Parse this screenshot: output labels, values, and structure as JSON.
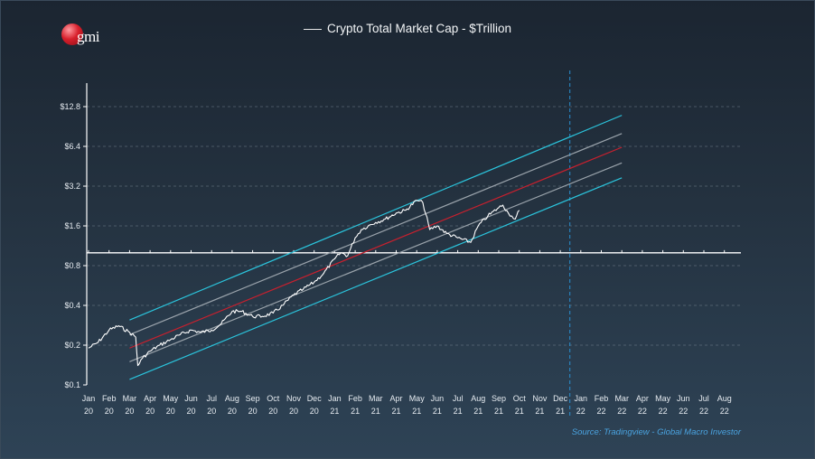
{
  "header": {
    "logo_text": "gmi",
    "title": "Crypto Total Market Cap - $Trillion",
    "source": "Source: Tradingview - Global Macro Investor"
  },
  "colors": {
    "price_line": "#ffffff",
    "outer_channel": "#2bc4dc",
    "inner_channel": "#9aa3ab",
    "regression": "#c8202e",
    "reference_line": "#ffffff",
    "vertical_marker": "#2a8fd0",
    "gridline": "#7d8b98"
  },
  "chart_data": {
    "type": "line",
    "title": "Crypto Total Market Cap - $Trillion",
    "y_scale": "log2",
    "ylim": [
      0.1,
      12.8
    ],
    "y_ticks": [
      {
        "value": 0.1,
        "label": "$0.1"
      },
      {
        "value": 0.2,
        "label": "$0.2"
      },
      {
        "value": 0.4,
        "label": "$0.4"
      },
      {
        "value": 0.8,
        "label": "$0.8"
      },
      {
        "value": 1.6,
        "label": "$1.6"
      },
      {
        "value": 3.2,
        "label": "$3.2"
      },
      {
        "value": 6.4,
        "label": "$6.4"
      },
      {
        "value": 12.8,
        "label": "$12.8"
      }
    ],
    "x_ticks": [
      {
        "month": "Jan",
        "year": "20"
      },
      {
        "month": "Feb",
        "year": "20"
      },
      {
        "month": "Mar",
        "year": "20"
      },
      {
        "month": "Apr",
        "year": "20"
      },
      {
        "month": "May",
        "year": "20"
      },
      {
        "month": "Jun",
        "year": "20"
      },
      {
        "month": "Jul",
        "year": "20"
      },
      {
        "month": "Aug",
        "year": "20"
      },
      {
        "month": "Sep",
        "year": "20"
      },
      {
        "month": "Oct",
        "year": "20"
      },
      {
        "month": "Nov",
        "year": "20"
      },
      {
        "month": "Dec",
        "year": "20"
      },
      {
        "month": "Jan",
        "year": "21"
      },
      {
        "month": "Feb",
        "year": "21"
      },
      {
        "month": "Mar",
        "year": "21"
      },
      {
        "month": "Apr",
        "year": "21"
      },
      {
        "month": "May",
        "year": "21"
      },
      {
        "month": "Jun",
        "year": "21"
      },
      {
        "month": "Jul",
        "year": "21"
      },
      {
        "month": "Aug",
        "year": "21"
      },
      {
        "month": "Sep",
        "year": "21"
      },
      {
        "month": "Oct",
        "year": "21"
      },
      {
        "month": "Nov",
        "year": "21"
      },
      {
        "month": "Dec",
        "year": "21"
      },
      {
        "month": "Jan",
        "year": "22"
      },
      {
        "month": "Feb",
        "year": "22"
      },
      {
        "month": "Mar",
        "year": "22"
      },
      {
        "month": "Apr",
        "year": "22"
      },
      {
        "month": "May",
        "year": "22"
      },
      {
        "month": "Jun",
        "year": "22"
      },
      {
        "month": "Jul",
        "year": "22"
      },
      {
        "month": "Aug",
        "year": "22"
      }
    ],
    "grid": "horizontal dashed",
    "legend": "top-center",
    "series": [
      {
        "name": "Crypto Total Market Cap - $Trillion",
        "x": [
          "2020-01",
          "2020-01-15",
          "2020-02",
          "2020-02-15",
          "2020-03-01",
          "2020-03-10",
          "2020-03-13",
          "2020-03-20",
          "2020-04",
          "2020-04-15",
          "2020-05",
          "2020-05-15",
          "2020-06",
          "2020-06-15",
          "2020-07",
          "2020-07-15",
          "2020-08",
          "2020-08-15",
          "2020-09",
          "2020-09-15",
          "2020-10",
          "2020-10-15",
          "2020-11",
          "2020-11-15",
          "2020-12",
          "2020-12-15",
          "2021-01",
          "2021-01-10",
          "2021-01-20",
          "2021-02",
          "2021-02-10",
          "2021-02-20",
          "2021-03",
          "2021-03-15",
          "2021-04",
          "2021-04-15",
          "2021-05",
          "2021-05-10",
          "2021-05-20",
          "2021-06",
          "2021-06-15",
          "2021-07",
          "2021-07-20",
          "2021-08",
          "2021-08-15",
          "2021-09",
          "2021-09-07",
          "2021-09-15",
          "2021-09-20",
          "2021-09-25",
          "2021-10"
        ],
        "y": [
          0.19,
          0.21,
          0.26,
          0.28,
          0.25,
          0.23,
          0.14,
          0.16,
          0.18,
          0.2,
          0.22,
          0.24,
          0.26,
          0.25,
          0.26,
          0.29,
          0.36,
          0.36,
          0.33,
          0.33,
          0.35,
          0.4,
          0.48,
          0.53,
          0.6,
          0.7,
          0.9,
          1.0,
          0.95,
          1.3,
          1.5,
          1.6,
          1.7,
          1.8,
          2.0,
          2.1,
          2.5,
          2.4,
          1.5,
          1.6,
          1.4,
          1.3,
          1.2,
          1.6,
          1.9,
          2.2,
          2.3,
          2.0,
          1.9,
          1.8,
          2.1
        ]
      }
    ],
    "channel_lines": [
      {
        "name": "upper band",
        "style": "cyan",
        "start": {
          "x": "2020-03",
          "y": 0.31
        },
        "end": {
          "x": "2022-03",
          "y": 11.0
        }
      },
      {
        "name": "upper inner",
        "style": "gray",
        "start": {
          "x": "2020-03",
          "y": 0.24
        },
        "end": {
          "x": "2022-03",
          "y": 8.0
        }
      },
      {
        "name": "regression",
        "style": "red",
        "start": {
          "x": "2020-03",
          "y": 0.19
        },
        "end": {
          "x": "2022-03",
          "y": 6.3
        }
      },
      {
        "name": "lower inner",
        "style": "gray",
        "start": {
          "x": "2020-03",
          "y": 0.15
        },
        "end": {
          "x": "2022-03",
          "y": 4.8
        }
      },
      {
        "name": "lower band",
        "style": "cyan",
        "start": {
          "x": "2020-03",
          "y": 0.11
        },
        "end": {
          "x": "2022-03",
          "y": 3.7
        }
      }
    ],
    "reference_line": {
      "y": 1.0
    },
    "vertical_marker": {
      "x": "2021-12-15"
    }
  }
}
